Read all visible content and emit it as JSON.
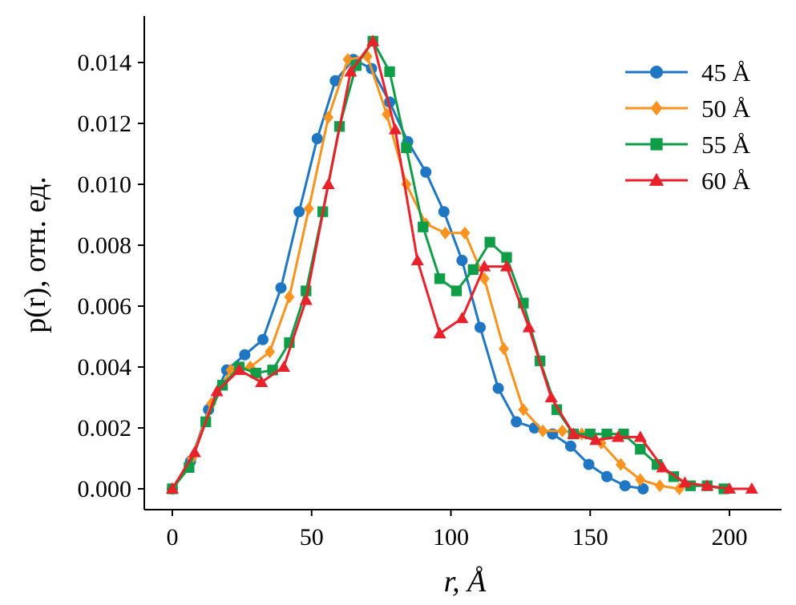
{
  "chart_data": {
    "type": "line",
    "title": "",
    "xlabel": "r, Å",
    "ylabel": "p(r), отн. ед.",
    "xlim": [
      -5,
      225
    ],
    "ylim": [
      -0.0007,
      0.0155
    ],
    "x_ticks": [
      0,
      50,
      100,
      150,
      200
    ],
    "x_tick_labels": [
      "0",
      "50",
      "100",
      "150",
      "200"
    ],
    "y_ticks": [
      0,
      0.002,
      0.004,
      0.006,
      0.008,
      0.01,
      0.012,
      0.014
    ],
    "y_tick_labels": [
      "0.000",
      "0.002",
      "0.004",
      "0.006",
      "0.008",
      "0.010",
      "0.012",
      "0.014"
    ],
    "grid": false,
    "legend_position": "top-right",
    "series": [
      {
        "name": "45 Å",
        "color": "#1f77c4",
        "marker": "circle",
        "x": [
          0,
          6.5,
          13,
          19.5,
          26,
          32.5,
          39,
          45.5,
          52,
          58.5,
          65,
          71.5,
          78,
          84.5,
          91,
          97.5,
          104,
          110.5,
          117,
          123.5,
          130,
          136.5,
          143,
          149.5,
          156,
          162.5,
          169
        ],
        "y": [
          0.0,
          0.0009,
          0.0026,
          0.0039,
          0.0044,
          0.0049,
          0.0066,
          0.0091,
          0.0115,
          0.0134,
          0.0141,
          0.0138,
          0.0127,
          0.0114,
          0.0104,
          0.0091,
          0.0075,
          0.0053,
          0.0033,
          0.0022,
          0.002,
          0.0018,
          0.0014,
          0.0008,
          0.0004,
          0.0001,
          0.0
        ]
      },
      {
        "name": "50 Å",
        "color": "#f7931e",
        "marker": "diamond",
        "x": [
          0,
          7,
          14,
          21,
          28,
          35,
          42,
          49,
          56,
          63,
          70,
          77,
          84,
          91,
          98,
          105,
          112,
          119,
          126,
          133,
          140,
          147,
          154,
          161,
          168,
          175,
          182
        ],
        "y": [
          0.0,
          0.001,
          0.0028,
          0.0039,
          0.004,
          0.0045,
          0.0063,
          0.0092,
          0.0122,
          0.0141,
          0.0142,
          0.0123,
          0.01,
          0.0087,
          0.0084,
          0.0084,
          0.0069,
          0.0046,
          0.0026,
          0.0019,
          0.0019,
          0.0018,
          0.0015,
          0.0008,
          0.0003,
          0.0001,
          0.0
        ]
      },
      {
        "name": "55 Å",
        "color": "#0f9d48",
        "marker": "square",
        "x": [
          0,
          6,
          12,
          18,
          24,
          30,
          36,
          42,
          48,
          54,
          60,
          66,
          72,
          78,
          84,
          90,
          96,
          102,
          108,
          114,
          120,
          126,
          132,
          138,
          144,
          150,
          156,
          162,
          168,
          174,
          180,
          186,
          192,
          198
        ],
        "y": [
          0.0,
          0.0007,
          0.0022,
          0.0034,
          0.004,
          0.0038,
          0.0039,
          0.0048,
          0.0065,
          0.0091,
          0.0119,
          0.0139,
          0.0147,
          0.0137,
          0.0112,
          0.0086,
          0.0069,
          0.0065,
          0.0072,
          0.0081,
          0.0076,
          0.0061,
          0.0042,
          0.0026,
          0.0018,
          0.0018,
          0.0018,
          0.0018,
          0.0013,
          0.0008,
          0.0004,
          0.0001,
          0.0001,
          0.0
        ]
      },
      {
        "name": "60 Å",
        "color": "#e8212b",
        "marker": "triangle",
        "x": [
          0,
          8,
          16,
          24,
          32,
          40,
          48,
          56,
          64,
          72,
          80,
          88,
          96,
          104,
          112,
          120,
          128,
          136,
          144,
          152,
          160,
          168,
          176,
          184,
          192,
          200,
          208
        ],
        "y": [
          0.0,
          0.0012,
          0.0032,
          0.0039,
          0.0035,
          0.004,
          0.0062,
          0.01,
          0.0137,
          0.0147,
          0.0118,
          0.0075,
          0.0051,
          0.0056,
          0.0073,
          0.0073,
          0.0053,
          0.003,
          0.0018,
          0.0016,
          0.0017,
          0.0017,
          0.0007,
          0.0002,
          0.0001,
          0.0,
          0.0
        ]
      }
    ]
  }
}
